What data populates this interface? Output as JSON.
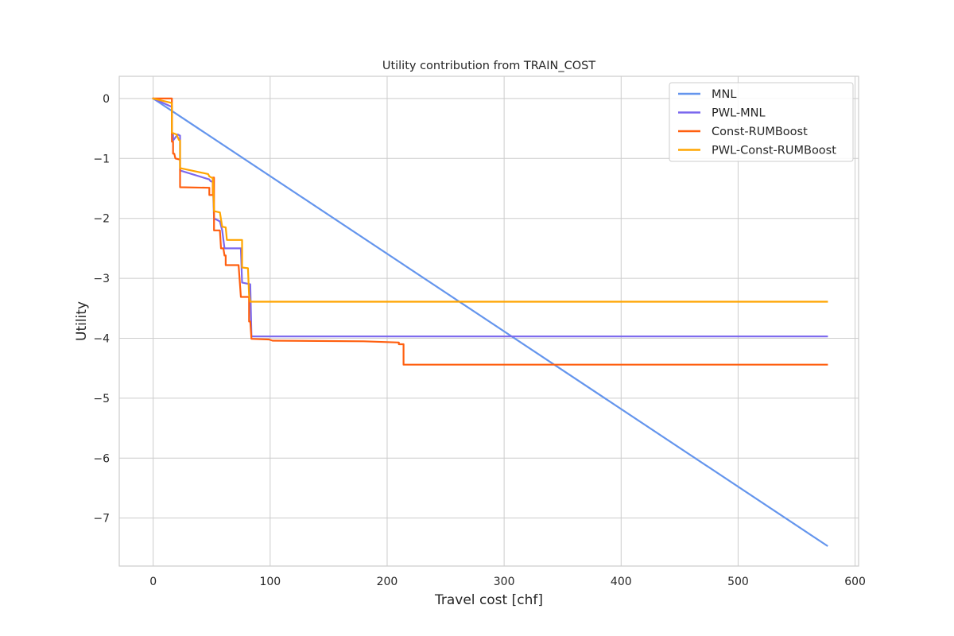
{
  "chart_data": {
    "type": "line",
    "title": "Utility contribution from TRAIN_COST",
    "xlabel": "Travel cost [chf]",
    "ylabel": "Utility",
    "xlim": [
      -29,
      603
    ],
    "ylim": [
      -7.8,
      0.37
    ],
    "xticks": [
      0,
      100,
      200,
      300,
      400,
      500,
      600
    ],
    "yticks": [
      0,
      -1,
      -2,
      -3,
      -4,
      -5,
      -6,
      -7
    ],
    "xtick_labels": [
      "0",
      "100",
      "200",
      "300",
      "400",
      "500",
      "600"
    ],
    "ytick_labels": [
      "0",
      "−1",
      "−2",
      "−3",
      "−4",
      "−5",
      "−6",
      "−7"
    ],
    "grid": true,
    "legend_position": "upper right",
    "series": [
      {
        "name": "MNL",
        "color": "#6495ED",
        "points": [
          [
            0,
            0
          ],
          [
            576,
            -7.46
          ]
        ]
      },
      {
        "name": "PWL-MNL",
        "color": "#7B68EE",
        "points": [
          [
            0,
            0
          ],
          [
            16,
            -0.14
          ],
          [
            16,
            -0.6
          ],
          [
            17,
            -0.6
          ],
          [
            17,
            -0.7
          ],
          [
            21,
            -0.6
          ],
          [
            23,
            -0.62
          ],
          [
            23,
            -1.2
          ],
          [
            48,
            -1.35
          ],
          [
            49,
            -1.38
          ],
          [
            51,
            -1.39
          ],
          [
            52,
            -2.0
          ],
          [
            57,
            -2.05
          ],
          [
            59,
            -2.2
          ],
          [
            61,
            -2.5
          ],
          [
            75,
            -2.5
          ],
          [
            76,
            -3.07
          ],
          [
            83,
            -3.1
          ],
          [
            84,
            -3.97
          ],
          [
            576,
            -3.97
          ]
        ]
      },
      {
        "name": "Const-RUMBoost",
        "color": "#FF5F0F",
        "points": [
          [
            0,
            0
          ],
          [
            16,
            0
          ],
          [
            16,
            -0.72
          ],
          [
            17,
            -0.72
          ],
          [
            17,
            -0.92
          ],
          [
            18,
            -0.92
          ],
          [
            19,
            -1.0
          ],
          [
            23,
            -1.02
          ],
          [
            23,
            -1.48
          ],
          [
            48,
            -1.49
          ],
          [
            48,
            -1.61
          ],
          [
            51,
            -1.61
          ],
          [
            51,
            -1.32
          ],
          [
            52,
            -1.32
          ],
          [
            52,
            -2.2
          ],
          [
            57,
            -2.2
          ],
          [
            58,
            -2.5
          ],
          [
            60,
            -2.5
          ],
          [
            61,
            -2.62
          ],
          [
            62,
            -2.62
          ],
          [
            62,
            -2.78
          ],
          [
            73,
            -2.78
          ],
          [
            75,
            -3.31
          ],
          [
            82,
            -3.31
          ],
          [
            82,
            -3.72
          ],
          [
            83,
            -3.72
          ],
          [
            84,
            -4.01
          ],
          [
            99,
            -4.02
          ],
          [
            102,
            -4.04
          ],
          [
            180,
            -4.05
          ],
          [
            210,
            -4.07
          ],
          [
            210,
            -4.1
          ],
          [
            214,
            -4.1
          ],
          [
            214,
            -4.44
          ],
          [
            576,
            -4.44
          ]
        ]
      },
      {
        "name": "PWL-Const-RUMBoost",
        "color": "#FFA500",
        "points": [
          [
            0,
            0
          ],
          [
            15,
            -0.07
          ],
          [
            16,
            -0.08
          ],
          [
            16,
            -0.57
          ],
          [
            20,
            -0.6
          ],
          [
            22,
            -0.69
          ],
          [
            23,
            -0.7
          ],
          [
            23,
            -1.16
          ],
          [
            47,
            -1.26
          ],
          [
            48,
            -1.3
          ],
          [
            51,
            -1.33
          ],
          [
            52,
            -1.88
          ],
          [
            57,
            -1.9
          ],
          [
            59,
            -2.14
          ],
          [
            62,
            -2.15
          ],
          [
            63,
            -2.36
          ],
          [
            76,
            -2.36
          ],
          [
            76,
            -2.82
          ],
          [
            81,
            -2.83
          ],
          [
            82,
            -3.28
          ],
          [
            83,
            -3.39
          ],
          [
            576,
            -3.39
          ]
        ]
      }
    ]
  }
}
